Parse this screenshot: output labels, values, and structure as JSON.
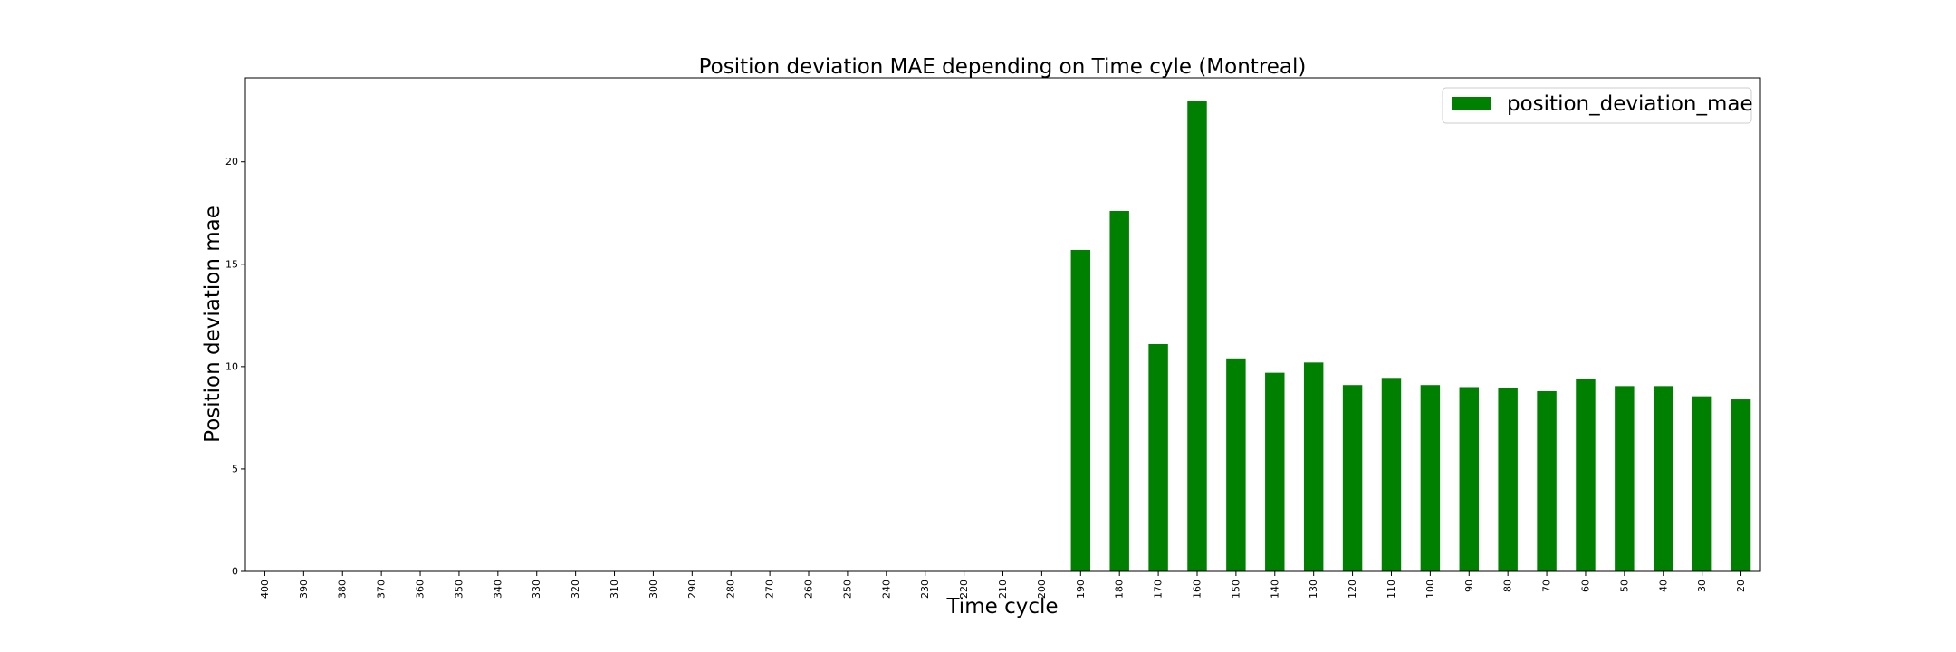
{
  "chart_data": {
    "type": "bar",
    "title": "Position deviation MAE depending on Time cyle (Montreal)",
    "xlabel": "Time cycle",
    "ylabel": "Position deviation mae",
    "categories": [
      "400",
      "390",
      "380",
      "370",
      "360",
      "350",
      "340",
      "330",
      "320",
      "310",
      "300",
      "290",
      "280",
      "270",
      "260",
      "250",
      "240",
      "230",
      "220",
      "210",
      "200",
      "190",
      "180",
      "170",
      "160",
      "150",
      "140",
      "130",
      "120",
      "110",
      "100",
      "90",
      "80",
      "70",
      "60",
      "50",
      "40",
      "30",
      "20"
    ],
    "series": [
      {
        "name": "position_deviation_mae",
        "color": "#008000",
        "values": [
          null,
          null,
          null,
          null,
          null,
          null,
          null,
          null,
          null,
          null,
          null,
          null,
          null,
          null,
          null,
          null,
          null,
          null,
          null,
          null,
          null,
          15.7,
          17.6,
          11.1,
          22.95,
          10.4,
          9.7,
          10.2,
          9.1,
          9.45,
          9.1,
          9.0,
          8.95,
          8.8,
          9.4,
          9.05,
          9.05,
          8.55,
          8.4
        ]
      }
    ],
    "ylim": [
      0,
      24.1
    ],
    "yticks": [
      0,
      5,
      10,
      15,
      20
    ],
    "grid": false,
    "legend_position": "top-right"
  }
}
